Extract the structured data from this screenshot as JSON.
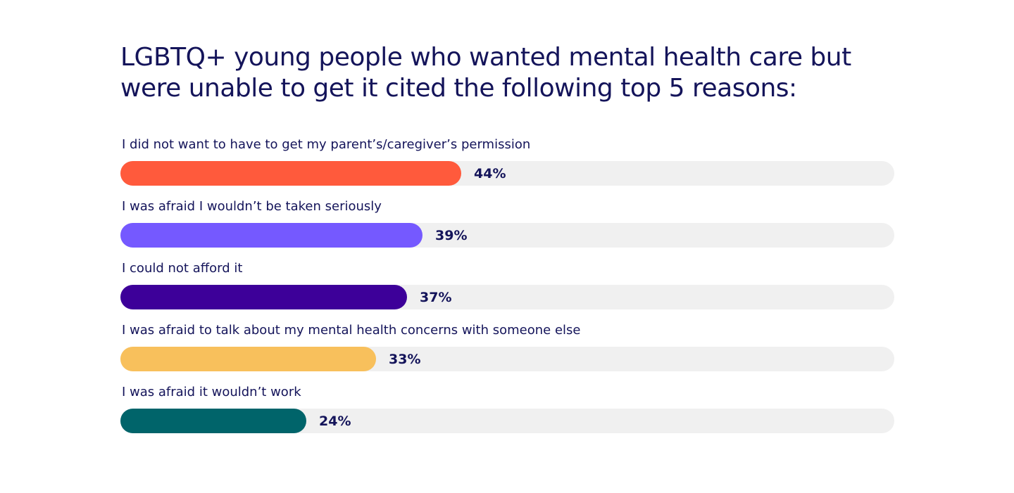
{
  "chart_data": {
    "type": "bar",
    "orientation": "horizontal",
    "title": "LGBTQ+ young people who wanted mental health care but were unable to get it cited the following top 5 reasons:",
    "categories": [
      "I did not want to have to get my parent’s/caregiver’s permission",
      "I was afraid I wouldn’t be taken seriously",
      "I could not afford it",
      "I was afraid to talk about my mental health concerns with someone else",
      "I was afraid it wouldn’t work"
    ],
    "values": [
      44,
      39,
      37,
      33,
      24
    ],
    "value_labels": [
      "44%",
      "39%",
      "37%",
      "33%",
      "24%"
    ],
    "colors": [
      "#ff5a3c",
      "#7559ff",
      "#3d0099",
      "#f8c05c",
      "#00646a"
    ],
    "track_color": "#f0f0f0",
    "xlim": [
      0,
      100
    ],
    "grid": false,
    "legend": "none"
  }
}
